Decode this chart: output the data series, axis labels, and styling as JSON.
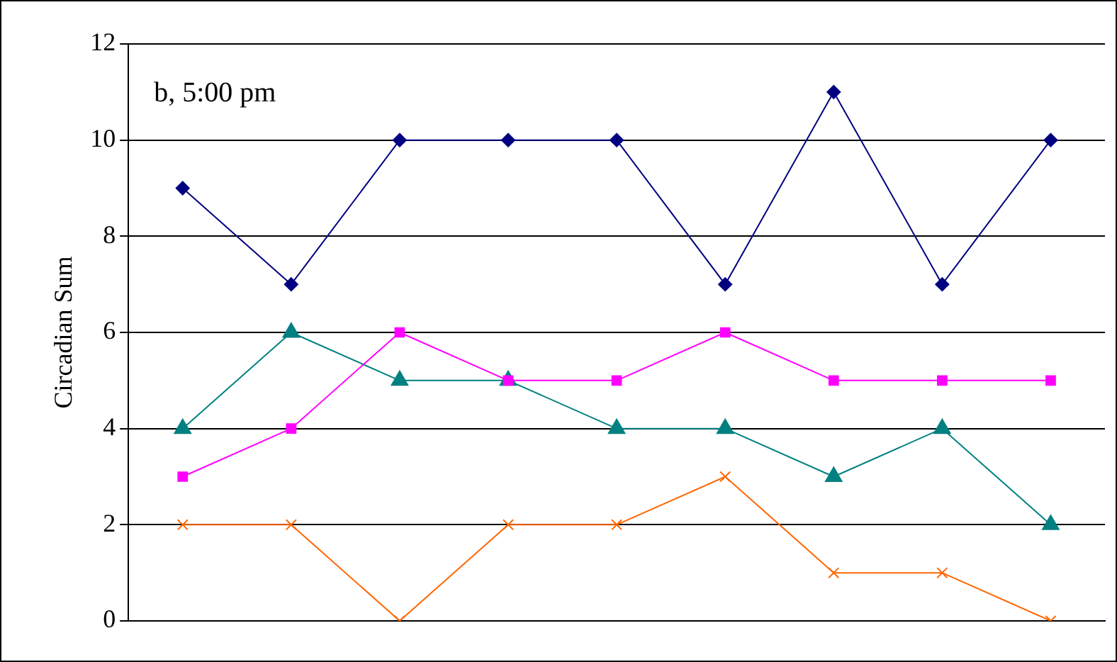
{
  "chart_data": {
    "type": "line",
    "ylabel": "Circadian Sum",
    "annotations": [
      "b, 5:00 pm"
    ],
    "categories": [
      null,
      null,
      null,
      null,
      null,
      null,
      null,
      null,
      null
    ],
    "series": [
      {
        "color": "#000080",
        "marker": "diamond",
        "values": [
          9,
          7,
          10,
          10,
          10,
          7,
          11,
          7,
          10
        ]
      },
      {
        "color": "#ff00ff",
        "marker": "square",
        "values": [
          3,
          4,
          6,
          5,
          5,
          6,
          5,
          5,
          5
        ]
      },
      {
        "color": "#008080",
        "marker": "triangle",
        "values": [
          4,
          6,
          5,
          5,
          4,
          4,
          3,
          4,
          2
        ]
      },
      {
        "color": "#ff6600",
        "marker": "cross",
        "values": [
          2,
          2,
          0,
          2,
          2,
          3,
          1,
          1,
          0
        ]
      }
    ],
    "ylim": [
      0,
      12
    ],
    "yticks": [
      0,
      2,
      4,
      6,
      8,
      10,
      12
    ],
    "grid": "y",
    "legend": false,
    "tick_labels": "y"
  }
}
